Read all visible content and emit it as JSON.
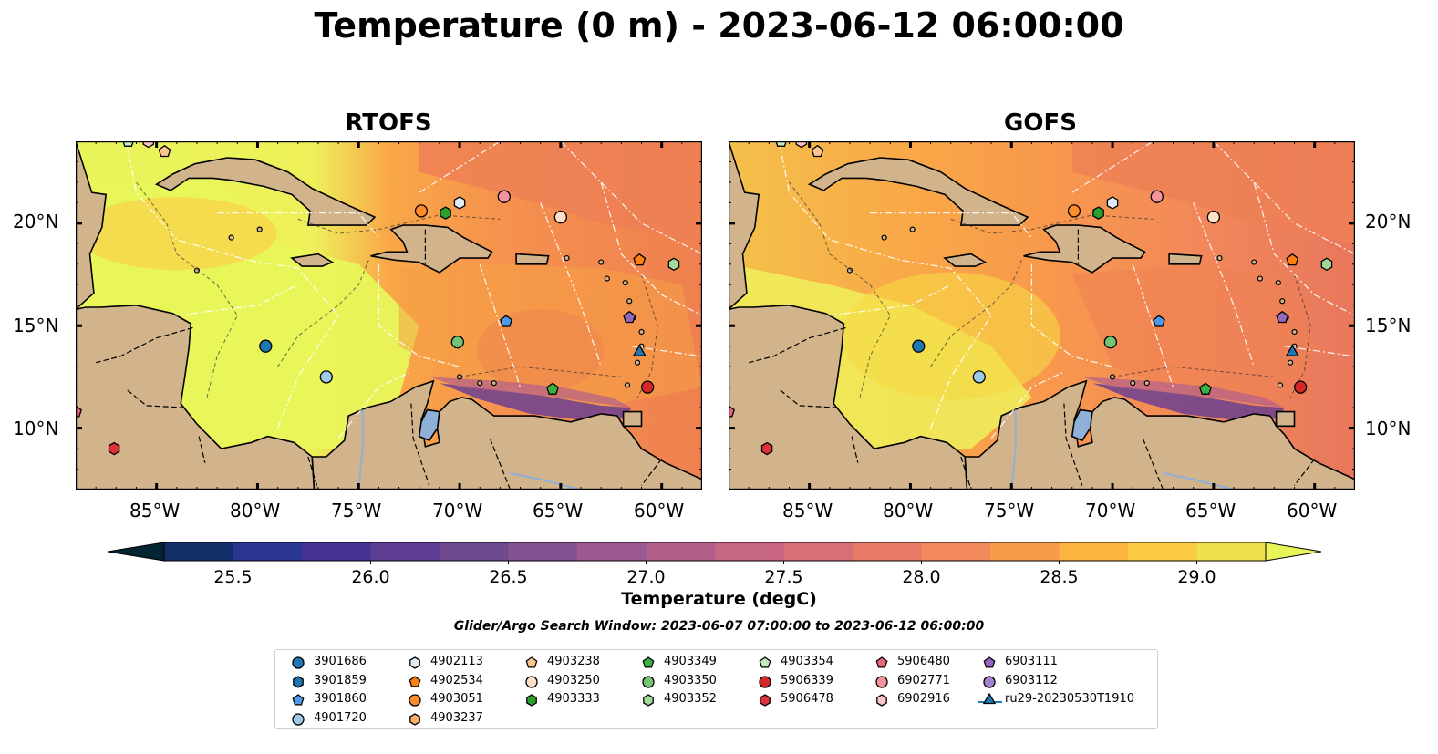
{
  "title": "Temperature (0 m) - 2023-06-12 06:00:00",
  "panels": [
    {
      "id": "rtofs",
      "title": "RTOFS"
    },
    {
      "id": "gofs",
      "title": "GOFS"
    }
  ],
  "map_extent": {
    "lon": [
      -89,
      -58
    ],
    "lat": [
      7,
      24
    ]
  },
  "lat_ticks": [
    "20°N",
    "15°N",
    "10°N"
  ],
  "lon_ticks": [
    "85°W",
    "80°W",
    "75°W",
    "70°W",
    "65°W",
    "60°W"
  ],
  "colorbar": {
    "label": "Temperature (degC)",
    "ticks": [
      "25.5",
      "26.0",
      "26.5",
      "27.0",
      "27.5",
      "28.0",
      "28.5",
      "29.0"
    ],
    "range": [
      25.25,
      29.25
    ],
    "extend": "both",
    "colors": [
      "#042333",
      "#13306b",
      "#2a3690",
      "#453293",
      "#5c3d91",
      "#6f4a8e",
      "#845290",
      "#9a5990",
      "#b15e8b",
      "#c66683",
      "#d76f76",
      "#e67a67",
      "#f2895a",
      "#f89c4c",
      "#fbb43f",
      "#fccc43",
      "#f0e04d",
      "#e8f55a"
    ]
  },
  "search_window": "Glider/Argo Search Window: 2023-06-07 07:00:00 to 2023-06-12 06:00:00",
  "legend": [
    {
      "label": "3901686",
      "marker": "circle",
      "color": "#1f77b4"
    },
    {
      "label": "3901859",
      "marker": "hexagon",
      "color": "#1f77b4"
    },
    {
      "label": "3901860",
      "marker": "pentagon",
      "color": "#4c9be8"
    },
    {
      "label": "4901720",
      "marker": "circle",
      "color": "#9ecae9"
    },
    {
      "label": "4902113",
      "marker": "hexagon",
      "color": "#deebf7"
    },
    {
      "label": "4902534",
      "marker": "pentagon",
      "color": "#ff7f0e"
    },
    {
      "label": "4903051",
      "marker": "circle",
      "color": "#ff8c2a"
    },
    {
      "label": "4903237",
      "marker": "hexagon",
      "color": "#fdae6b"
    },
    {
      "label": "4903238",
      "marker": "pentagon",
      "color": "#fdc58f"
    },
    {
      "label": "4903250",
      "marker": "circle",
      "color": "#fde0c5"
    },
    {
      "label": "4903333",
      "marker": "hexagon",
      "color": "#2ca02c"
    },
    {
      "label": "4903349",
      "marker": "pentagon",
      "color": "#3cb043"
    },
    {
      "label": "4903350",
      "marker": "circle",
      "color": "#74c476"
    },
    {
      "label": "4903352",
      "marker": "hexagon",
      "color": "#a1d99b"
    },
    {
      "label": "4903354",
      "marker": "pentagon",
      "color": "#c7e9c0"
    },
    {
      "label": "5906339",
      "marker": "circle",
      "color": "#d62728"
    },
    {
      "label": "5906478",
      "marker": "hexagon",
      "color": "#e0303a"
    },
    {
      "label": "5906480",
      "marker": "pentagon",
      "color": "#e6677a"
    },
    {
      "label": "6902771",
      "marker": "circle",
      "color": "#f4929e"
    },
    {
      "label": "6902916",
      "marker": "hexagon",
      "color": "#fcc5c5"
    },
    {
      "label": "6903111",
      "marker": "pentagon",
      "color": "#9467bd"
    },
    {
      "label": "6903112",
      "marker": "circle",
      "color": "#a281cf"
    },
    {
      "label": "ru29-20230530T1910",
      "marker": "triangle-line",
      "color": "#1f77b4"
    }
  ],
  "floats": [
    {
      "label": "3901686",
      "lon": -79.6,
      "lat": 14.0
    },
    {
      "label": "4901720",
      "lon": -76.6,
      "lat": 12.5
    },
    {
      "label": "4902113",
      "lon": -70.0,
      "lat": 21.0
    },
    {
      "label": "6902771",
      "lon": -67.8,
      "lat": 21.3
    },
    {
      "label": "4903051",
      "lon": -71.9,
      "lat": 20.6
    },
    {
      "label": "4903333",
      "lon": -70.7,
      "lat": 20.5
    },
    {
      "label": "4903250",
      "lon": -65.0,
      "lat": 20.3
    },
    {
      "label": "4902534",
      "lon": -61.1,
      "lat": 18.2
    },
    {
      "label": "4903352",
      "lon": -59.4,
      "lat": 18.0
    },
    {
      "label": "3901860",
      "lon": -67.7,
      "lat": 15.2
    },
    {
      "label": "4903350",
      "lon": -70.1,
      "lat": 14.2
    },
    {
      "label": "4903349",
      "lon": -65.4,
      "lat": 11.9
    },
    {
      "label": "6903111",
      "lon": -61.6,
      "lat": 15.4
    },
    {
      "label": "ru29-20230530T1910",
      "lon": -61.1,
      "lat": 13.7
    },
    {
      "label": "5906339",
      "lon": -60.7,
      "lat": 12.0
    },
    {
      "label": "5906478",
      "lon": -87.1,
      "lat": 9.0
    },
    {
      "label": "5906480",
      "lon": -89.0,
      "lat": 10.8
    },
    {
      "label": "4903238",
      "lon": -84.6,
      "lat": 23.5
    },
    {
      "label": "6902916",
      "lon": -85.4,
      "lat": 24.0
    },
    {
      "label": "4903354",
      "lon": -86.4,
      "lat": 24.0
    }
  ]
}
